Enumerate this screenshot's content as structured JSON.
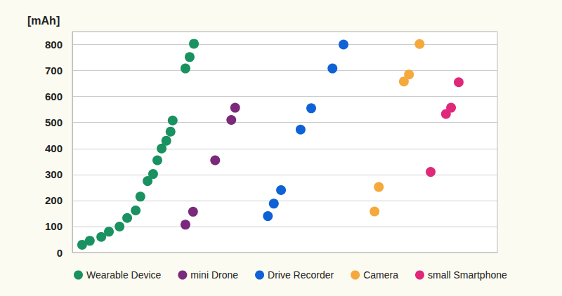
{
  "chart_data": {
    "type": "scatter",
    "ylabel": "[mAh]",
    "xlim": [
      0,
      100
    ],
    "ylim": [
      0,
      850
    ],
    "yticks": [
      0,
      100,
      200,
      300,
      400,
      500,
      600,
      700,
      800
    ],
    "grid": true,
    "legend": "bottom",
    "tick_labels": "y",
    "marker": "circle",
    "series": [
      {
        "name": "Wearable Device",
        "color": "#1a9160",
        "x": [
          2.3,
          4.1,
          6.8,
          8.6,
          11.1,
          12.9,
          14.9,
          16.0,
          17.7,
          19.0,
          20.0,
          21.0,
          22.1,
          23.1,
          23.6,
          26.6,
          27.6,
          28.6
        ],
        "values": [
          30,
          45,
          60,
          80,
          100,
          133,
          162,
          215,
          275,
          302,
          355,
          400,
          430,
          465,
          508,
          708,
          752,
          803
        ]
      },
      {
        "name": "mini Drone",
        "color": "#7b2a7b",
        "x": [
          26.6,
          28.4,
          33.6,
          37.4,
          38.3
        ],
        "values": [
          107,
          157,
          355,
          510,
          557
        ]
      },
      {
        "name": "Drive Recorder",
        "color": "#0f62d6",
        "x": [
          46.0,
          47.4,
          49.1,
          53.7,
          56.2,
          61.2,
          63.8
        ],
        "values": [
          140,
          188,
          240,
          473,
          555,
          708,
          800
        ]
      },
      {
        "name": "Camera",
        "color": "#f5a83b",
        "x": [
          71.1,
          72.1,
          78.0,
          79.2,
          81.7
        ],
        "values": [
          158,
          252,
          658,
          685,
          802
        ]
      },
      {
        "name": "small Smartphone",
        "color": "#e0287b",
        "x": [
          84.3,
          87.9,
          89.1,
          90.9
        ],
        "values": [
          310,
          533,
          557,
          655
        ]
      }
    ]
  }
}
